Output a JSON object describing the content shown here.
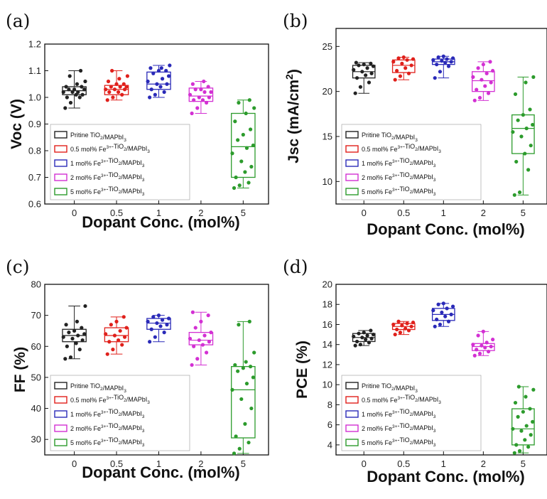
{
  "colors": {
    "0": "#222222",
    "0.5": "#e0201b",
    "1": "#2a2ab8",
    "2": "#d330d3",
    "5": "#2c9b2c"
  },
  "chart_data": [
    {
      "panel": "(a)",
      "type": "box",
      "xlabel": "Dopant Conc. (mol%)",
      "ylabel": "Voc (V)",
      "categories": [
        "0",
        "0.5",
        "1",
        "2",
        "5"
      ],
      "ylim": [
        0.6,
        1.2
      ],
      "yticks": [
        "0.6",
        "0.7",
        "0.8",
        "0.9",
        "1.0",
        "1.1",
        "1.2"
      ],
      "legend": {
        "position": "bottom-left",
        "entries": [
          "Pritine TiO2/MAPbI3",
          "0.5 mol% Fe3+-TiO2/MAPbI3",
          "1 mol% Fe3+-TiO2/MAPbI3",
          "2 mol% Fe3+-TiO2/MAPbI3",
          "5 mol% Fe3+-TiO2/MAPbI3"
        ]
      },
      "boxes": [
        {
          "cat": "0",
          "q1": 1.01,
          "median": 1.025,
          "q3": 1.04,
          "min": 0.96,
          "max": 1.1,
          "points": [
            0.96,
            0.98,
            1.0,
            1.0,
            1.01,
            1.01,
            1.02,
            1.02,
            1.02,
            1.03,
            1.03,
            1.03,
            1.04,
            1.04,
            1.05,
            1.06,
            1.08,
            1.1
          ]
        },
        {
          "cat": "0.5",
          "q1": 1.01,
          "median": 1.03,
          "q3": 1.045,
          "min": 0.99,
          "max": 1.1,
          "points": [
            0.99,
            1.0,
            1.01,
            1.02,
            1.02,
            1.03,
            1.03,
            1.03,
            1.04,
            1.04,
            1.04,
            1.05,
            1.05,
            1.06,
            1.07,
            1.08,
            1.1
          ]
        },
        {
          "cat": "1",
          "q1": 1.03,
          "median": 1.05,
          "q3": 1.095,
          "min": 1.0,
          "max": 1.12,
          "points": [
            1.0,
            1.01,
            1.02,
            1.03,
            1.04,
            1.05,
            1.05,
            1.06,
            1.07,
            1.08,
            1.09,
            1.1,
            1.1,
            1.11,
            1.11,
            1.12
          ]
        },
        {
          "cat": "2",
          "q1": 0.985,
          "median": 1.005,
          "q3": 1.035,
          "min": 0.94,
          "max": 1.06,
          "points": [
            0.94,
            0.96,
            0.98,
            0.99,
            0.99,
            1.0,
            1.0,
            1.01,
            1.02,
            1.02,
            1.03,
            1.03,
            1.04,
            1.05,
            1.06
          ]
        },
        {
          "cat": "5",
          "q1": 0.7,
          "median": 0.815,
          "q3": 0.94,
          "min": 0.66,
          "max": 0.99,
          "points": [
            0.66,
            0.67,
            0.68,
            0.7,
            0.72,
            0.74,
            0.76,
            0.79,
            0.81,
            0.82,
            0.84,
            0.86,
            0.88,
            0.91,
            0.94,
            0.96,
            0.98,
            0.99
          ]
        }
      ]
    },
    {
      "panel": "(b)",
      "type": "box",
      "xlabel": "Dopant Conc. (mol%)",
      "ylabel": "Jsc (mA/cm2)",
      "categories": [
        "0",
        "0.5",
        "1",
        "2",
        "5"
      ],
      "ylim": [
        7.5,
        27
      ],
      "yticks": [
        "10",
        "15",
        "20",
        "25"
      ],
      "legend": {
        "position": "bottom-left",
        "entries": [
          "Pritine TiO2/MAPbI3",
          "0.5 mol% Fe3+-TiO2/MAPbI3",
          "1 mol% Fe3+-TiO2/MAPbI3",
          "2 mol% Fe3+-TiO2/MAPbI3",
          "5 mol% Fe3+-TiO2/MAPbI3"
        ]
      },
      "boxes": [
        {
          "cat": "0",
          "q1": 21.5,
          "median": 22.2,
          "q3": 22.9,
          "min": 19.8,
          "max": 23.2,
          "points": [
            19.8,
            20.5,
            21.0,
            21.5,
            21.8,
            22.0,
            22.2,
            22.4,
            22.6,
            22.8,
            22.9,
            23.0,
            23.1,
            23.2
          ]
        },
        {
          "cat": "0.5",
          "q1": 22.1,
          "median": 22.9,
          "q3": 23.5,
          "min": 21.3,
          "max": 23.8,
          "points": [
            21.3,
            21.7,
            22.0,
            22.3,
            22.6,
            22.9,
            23.1,
            23.3,
            23.5,
            23.6,
            23.7,
            23.8
          ]
        },
        {
          "cat": "1",
          "q1": 23.0,
          "median": 23.3,
          "q3": 23.6,
          "min": 21.5,
          "max": 23.9,
          "points": [
            21.5,
            22.2,
            22.8,
            23.0,
            23.2,
            23.3,
            23.4,
            23.5,
            23.6,
            23.7,
            23.8,
            23.9
          ]
        },
        {
          "cat": "2",
          "q1": 20.0,
          "median": 21.2,
          "q3": 22.2,
          "min": 19.0,
          "max": 23.3,
          "points": [
            19.0,
            19.3,
            19.8,
            20.2,
            20.6,
            21.0,
            21.3,
            21.6,
            22.0,
            22.3,
            22.6,
            23.0,
            23.3
          ]
        },
        {
          "cat": "5",
          "q1": 13.1,
          "median": 15.9,
          "q3": 17.4,
          "min": 8.5,
          "max": 21.6,
          "points": [
            8.5,
            8.8,
            11.3,
            12.2,
            13.1,
            14.0,
            15.0,
            15.5,
            15.9,
            16.3,
            16.8,
            17.4,
            18.0,
            19.7,
            21.0,
            21.6
          ]
        }
      ]
    },
    {
      "panel": "(c)",
      "type": "box",
      "xlabel": "Dopant Conc. (mol%)",
      "ylabel": "FF (%)",
      "categories": [
        "0",
        "0.5",
        "1",
        "2",
        "5"
      ],
      "ylim": [
        25,
        80
      ],
      "yticks": [
        "30",
        "40",
        "50",
        "60",
        "70",
        "80"
      ],
      "legend": {
        "position": "bottom-left",
        "entries": [
          "Pritine TiO2/MAPbI3",
          "0.5 mol% Fe3+-TiO2/MAPbI3",
          "1 mol% Fe3+-TiO2/MAPbI3",
          "2 mol% Fe3+-TiO2/MAPbI3",
          "5 mol% Fe3+-TiO2/MAPbI3"
        ]
      },
      "boxes": [
        {
          "cat": "0",
          "q1": 61.5,
          "median": 63.5,
          "q3": 65.5,
          "min": 56,
          "max": 73,
          "points": [
            56,
            56.5,
            59,
            60,
            61,
            62,
            62.5,
            63,
            63.5,
            64,
            64.5,
            65,
            66,
            67,
            68,
            73
          ]
        },
        {
          "cat": "0.5",
          "q1": 61.5,
          "median": 63.5,
          "q3": 66,
          "min": 57.5,
          "max": 69.5,
          "points": [
            57.5,
            59,
            60.5,
            61.5,
            62,
            63,
            63.5,
            64,
            65,
            66,
            67,
            68,
            69.5
          ]
        },
        {
          "cat": "1",
          "q1": 65.5,
          "median": 67.5,
          "q3": 69,
          "min": 61.5,
          "max": 70,
          "points": [
            61.5,
            63,
            64.5,
            65.5,
            66.5,
            67,
            67.5,
            68,
            68.5,
            69,
            69.5,
            70
          ]
        },
        {
          "cat": "2",
          "q1": 60.5,
          "median": 62,
          "q3": 64.5,
          "min": 54,
          "max": 71,
          "points": [
            54,
            56,
            58,
            60,
            60.5,
            61.5,
            62,
            62.5,
            63.5,
            64.5,
            66,
            68,
            70,
            71
          ]
        },
        {
          "cat": "5",
          "q1": 30.5,
          "median": 46,
          "q3": 53.5,
          "min": 25.5,
          "max": 68,
          "points": [
            25.5,
            27,
            29,
            31,
            35,
            40,
            43,
            46,
            48,
            50,
            52,
            53,
            53.5,
            54,
            55,
            58,
            67,
            68
          ]
        }
      ]
    },
    {
      "panel": "(d)",
      "type": "box",
      "xlabel": "Dopant Conc. (mol%)",
      "ylabel": "PCE (%)",
      "categories": [
        "0",
        "0.5",
        "1",
        "2",
        "5"
      ],
      "ylim": [
        3,
        20
      ],
      "yticks": [
        "4",
        "6",
        "8",
        "10",
        "12",
        "14",
        "16",
        "18",
        "20"
      ],
      "legend": {
        "position": "bottom-left",
        "entries": [
          "Pritine TiO2/MAPbI3",
          "0.5 mol% Fe3+-TiO2/MAPbI3",
          "1 mol% Fe3+-TiO2/MAPbI3",
          "2 mol% Fe3+-TiO2/MAPbI3",
          "5 mol% Fe3+-TiO2/MAPbI3"
        ]
      },
      "boxes": [
        {
          "cat": "0",
          "q1": 14.3,
          "median": 14.7,
          "q3": 15.1,
          "min": 13.9,
          "max": 15.4,
          "points": [
            13.9,
            14.0,
            14.2,
            14.3,
            14.5,
            14.6,
            14.7,
            14.8,
            14.9,
            15.0,
            15.1,
            15.2,
            15.4
          ]
        },
        {
          "cat": "0.5",
          "q1": 15.5,
          "median": 15.8,
          "q3": 16.1,
          "min": 15.0,
          "max": 16.3,
          "points": [
            15.0,
            15.2,
            15.4,
            15.5,
            15.6,
            15.8,
            15.9,
            16.0,
            16.1,
            16.2,
            16.3
          ]
        },
        {
          "cat": "1",
          "q1": 16.4,
          "median": 17.0,
          "q3": 17.6,
          "min": 15.8,
          "max": 18.1,
          "points": [
            15.8,
            16.0,
            16.3,
            16.5,
            16.8,
            17.0,
            17.2,
            17.4,
            17.6,
            17.8,
            18.0,
            18.1
          ]
        },
        {
          "cat": "2",
          "q1": 13.4,
          "median": 13.8,
          "q3": 14.1,
          "min": 12.9,
          "max": 15.3,
          "points": [
            12.9,
            13.1,
            13.3,
            13.5,
            13.7,
            13.8,
            13.9,
            14.0,
            14.2,
            14.5,
            14.9,
            15.3
          ]
        },
        {
          "cat": "5",
          "q1": 4.0,
          "median": 5.6,
          "q3": 7.6,
          "min": 3.2,
          "max": 9.8,
          "points": [
            3.2,
            3.4,
            3.8,
            4.0,
            4.5,
            5.0,
            5.4,
            5.6,
            5.9,
            6.3,
            6.8,
            7.3,
            7.6,
            8.2,
            8.8,
            9.5,
            9.8
          ]
        }
      ]
    }
  ]
}
